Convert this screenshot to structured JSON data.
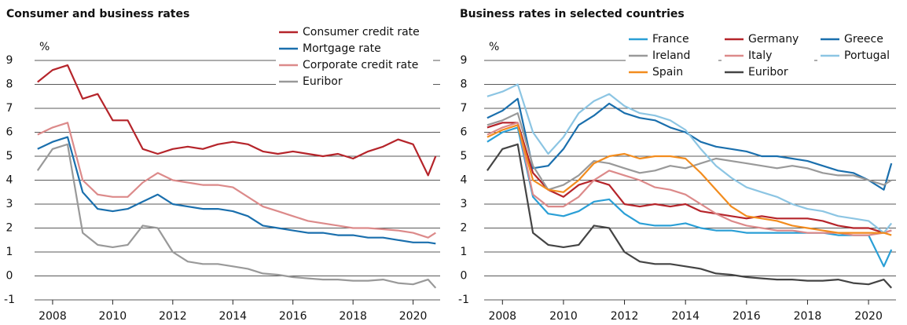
{
  "chart_data": [
    {
      "type": "line",
      "title": "Consumer and business rates",
      "y_label": "%",
      "x": [
        2007.5,
        2008,
        2008.5,
        2009,
        2009.5,
        2010,
        2010.5,
        2011,
        2011.5,
        2012,
        2012.5,
        2013,
        2013.5,
        2014,
        2014.5,
        2015,
        2015.5,
        2016,
        2016.5,
        2017,
        2017.5,
        2018,
        2018.5,
        2019,
        2019.5,
        2020,
        2020.5,
        2020.75
      ],
      "xlim": [
        2007.4,
        2020.9
      ],
      "xticks": [
        2008,
        2010,
        2012,
        2014,
        2016,
        2018,
        2020
      ],
      "ylim": [
        -1,
        9
      ],
      "yticks": [
        -1,
        0,
        1,
        2,
        3,
        4,
        5,
        6,
        7,
        8,
        9
      ],
      "grid": true,
      "legend": "top-right",
      "series": [
        {
          "name": "Consumer credit rate",
          "color": "#b5242a",
          "values": [
            8.1,
            8.6,
            8.8,
            7.4,
            7.6,
            6.5,
            6.5,
            5.3,
            5.1,
            5.3,
            5.4,
            5.3,
            5.5,
            5.6,
            5.5,
            5.2,
            5.1,
            5.2,
            5.1,
            5.0,
            5.1,
            4.9,
            5.2,
            5.4,
            5.7,
            5.5,
            4.2,
            5.0
          ]
        },
        {
          "name": "Mortgage rate",
          "color": "#1a6fad",
          "values": [
            5.3,
            5.6,
            5.8,
            3.5,
            2.8,
            2.7,
            2.8,
            3.1,
            3.4,
            3.0,
            2.9,
            2.8,
            2.8,
            2.7,
            2.5,
            2.1,
            2.0,
            1.9,
            1.8,
            1.8,
            1.7,
            1.7,
            1.6,
            1.6,
            1.5,
            1.4,
            1.4,
            1.35
          ]
        },
        {
          "name": "Corporate credit rate",
          "color": "#dc8a8a",
          "values": [
            5.9,
            6.2,
            6.4,
            4.0,
            3.4,
            3.3,
            3.3,
            3.9,
            4.3,
            4.0,
            3.9,
            3.8,
            3.8,
            3.7,
            3.3,
            2.9,
            2.7,
            2.5,
            2.3,
            2.2,
            2.1,
            2.0,
            2.0,
            1.95,
            1.9,
            1.8,
            1.6,
            1.8
          ]
        },
        {
          "name": "Euribor",
          "color": "#999999",
          "values": [
            4.4,
            5.3,
            5.5,
            1.8,
            1.3,
            1.2,
            1.3,
            2.1,
            2.0,
            1.0,
            0.6,
            0.5,
            0.5,
            0.4,
            0.3,
            0.1,
            0.05,
            -0.05,
            -0.1,
            -0.15,
            -0.15,
            -0.2,
            -0.2,
            -0.15,
            -0.3,
            -0.35,
            -0.15,
            -0.5
          ]
        }
      ]
    },
    {
      "type": "line",
      "title": "Business rates in selected countries",
      "y_label": "%",
      "x": [
        2007.5,
        2008,
        2008.5,
        2009,
        2009.5,
        2010,
        2010.5,
        2011,
        2011.5,
        2012,
        2012.5,
        2013,
        2013.5,
        2014,
        2014.5,
        2015,
        2015.5,
        2016,
        2016.5,
        2017,
        2017.5,
        2018,
        2018.5,
        2019,
        2019.5,
        2020,
        2020.5,
        2020.75
      ],
      "xlim": [
        2007.4,
        2020.9
      ],
      "xticks": [
        2008,
        2010,
        2012,
        2014,
        2016,
        2018,
        2020
      ],
      "ylim": [
        -1,
        9
      ],
      "yticks": [
        -1,
        0,
        1,
        2,
        3,
        4,
        5,
        6,
        7,
        8,
        9
      ],
      "grid": true,
      "legend": "top-right",
      "series": [
        {
          "name": "France",
          "color": "#2a9fd6",
          "values": [
            5.6,
            6.0,
            6.2,
            3.3,
            2.6,
            2.5,
            2.7,
            3.1,
            3.2,
            2.6,
            2.2,
            2.1,
            2.1,
            2.2,
            2.0,
            1.9,
            1.9,
            1.8,
            1.8,
            1.8,
            1.8,
            1.8,
            1.8,
            1.7,
            1.7,
            1.7,
            0.4,
            1.1
          ]
        },
        {
          "name": "Germany",
          "color": "#b5242a",
          "values": [
            6.2,
            6.4,
            6.4,
            4.3,
            3.6,
            3.3,
            3.8,
            4.0,
            3.8,
            3.0,
            2.9,
            3.0,
            2.9,
            3.0,
            2.7,
            2.6,
            2.5,
            2.4,
            2.5,
            2.4,
            2.4,
            2.4,
            2.3,
            2.1,
            2.0,
            2.0,
            1.8,
            1.9
          ]
        },
        {
          "name": "Greece",
          "color": "#1a6fad",
          "values": [
            6.6,
            6.9,
            7.4,
            4.5,
            4.6,
            5.3,
            6.3,
            6.7,
            7.2,
            6.8,
            6.6,
            6.5,
            6.2,
            6.0,
            5.6,
            5.4,
            5.3,
            5.2,
            5.0,
            5.0,
            4.9,
            4.8,
            4.6,
            4.4,
            4.3,
            4.0,
            3.6,
            4.7
          ]
        },
        {
          "name": "Ireland",
          "color": "#999999",
          "values": [
            6.3,
            6.5,
            6.8,
            4.6,
            3.6,
            3.8,
            4.2,
            4.8,
            4.7,
            4.5,
            4.3,
            4.4,
            4.6,
            4.5,
            4.7,
            4.9,
            4.8,
            4.7,
            4.6,
            4.5,
            4.6,
            4.5,
            4.3,
            4.2,
            4.2,
            4.0,
            3.8,
            4.0
          ]
        },
        {
          "name": "Italy",
          "color": "#dc8a8a",
          "values": [
            5.9,
            6.2,
            6.4,
            3.4,
            2.9,
            2.9,
            3.3,
            4.0,
            4.4,
            4.2,
            4.0,
            3.7,
            3.6,
            3.4,
            3.0,
            2.6,
            2.3,
            2.1,
            2.0,
            1.9,
            1.9,
            1.8,
            1.8,
            1.8,
            1.7,
            1.7,
            1.8,
            1.9
          ]
        },
        {
          "name": "Portugal",
          "color": "#8cc5e3",
          "values": [
            7.5,
            7.7,
            8.0,
            6.0,
            5.1,
            5.8,
            6.8,
            7.3,
            7.6,
            7.1,
            6.8,
            6.7,
            6.5,
            6.1,
            5.3,
            4.6,
            4.1,
            3.7,
            3.5,
            3.3,
            3.0,
            2.8,
            2.7,
            2.5,
            2.4,
            2.3,
            1.8,
            2.2
          ]
        },
        {
          "name": "Spain",
          "color": "#f28c1e",
          "values": [
            5.8,
            6.1,
            6.3,
            4.0,
            3.6,
            3.5,
            4.0,
            4.7,
            5.0,
            5.1,
            4.9,
            5.0,
            5.0,
            4.9,
            4.3,
            3.6,
            2.9,
            2.5,
            2.4,
            2.3,
            2.1,
            2.0,
            1.9,
            1.8,
            1.8,
            1.8,
            1.8,
            1.7
          ]
        },
        {
          "name": "Euribor",
          "color": "#444444",
          "values": [
            4.4,
            5.3,
            5.5,
            1.8,
            1.3,
            1.2,
            1.3,
            2.1,
            2.0,
            1.0,
            0.6,
            0.5,
            0.5,
            0.4,
            0.3,
            0.1,
            0.05,
            -0.05,
            -0.1,
            -0.15,
            -0.15,
            -0.2,
            -0.2,
            -0.15,
            -0.3,
            -0.35,
            -0.15,
            -0.5
          ]
        }
      ]
    }
  ]
}
